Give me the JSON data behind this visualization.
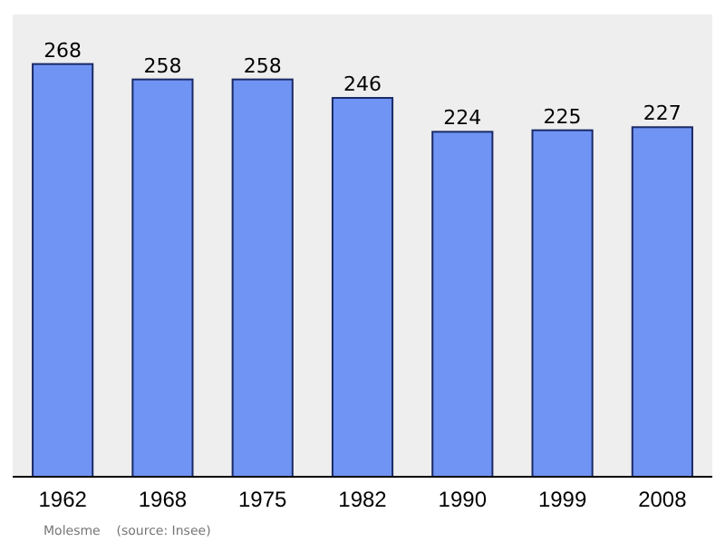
{
  "chart_data": {
    "type": "bar",
    "categories": [
      "1962",
      "1968",
      "1975",
      "1982",
      "1990",
      "1999",
      "2008"
    ],
    "values": [
      268,
      258,
      258,
      246,
      224,
      225,
      227
    ],
    "color": "#7094f4",
    "data_labels": true,
    "grid": false,
    "annotations": [
      "Molesme    (source: Insee)"
    ]
  }
}
